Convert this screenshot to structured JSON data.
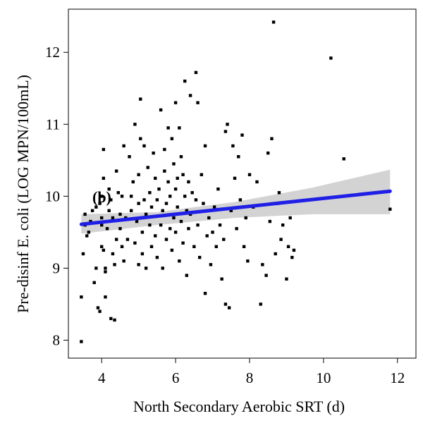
{
  "chart_data": {
    "type": "scatter",
    "panel_label": "(b)",
    "xlabel": "North Secondary Aerobic SRT (d)",
    "ylabel": "Pre-disinf E. coli (LOG MPN/100mL)",
    "xlim": [
      3.1,
      12.5
    ],
    "ylim": [
      7.75,
      12.6
    ],
    "xticks": [
      4,
      6,
      8,
      10,
      12
    ],
    "yticks": [
      8,
      9,
      10,
      11,
      12
    ],
    "grid": false,
    "legend": "none",
    "colors": {
      "points": "#000000",
      "fit_line": "#1f1fe6",
      "confidence_band": "#d3d3d3"
    },
    "series": [
      {
        "type": "scatter",
        "points": [
          [
            3.45,
            7.98
          ],
          [
            3.45,
            8.6
          ],
          [
            3.5,
            9.2
          ],
          [
            3.55,
            9.75
          ],
          [
            3.6,
            9.45
          ],
          [
            3.55,
            9.6
          ],
          [
            3.65,
            9.5
          ],
          [
            3.7,
            9.65
          ],
          [
            3.75,
            9.8
          ],
          [
            3.8,
            8.8
          ],
          [
            3.85,
            9.85
          ],
          [
            3.85,
            9.0
          ],
          [
            3.9,
            8.45
          ],
          [
            3.95,
            8.4
          ],
          [
            3.95,
            9.9
          ],
          [
            4.0,
            9.6
          ],
          [
            4.0,
            9.3
          ],
          [
            4.0,
            9.7
          ],
          [
            4.0,
            10.0
          ],
          [
            4.05,
            10.25
          ],
          [
            4.05,
            10.65
          ],
          [
            4.05,
            9.25
          ],
          [
            4.1,
            9.0
          ],
          [
            4.1,
            8.95
          ],
          [
            4.1,
            8.6
          ],
          [
            4.15,
            9.55
          ],
          [
            4.2,
            9.8
          ],
          [
            4.2,
            10.1
          ],
          [
            4.25,
            9.95
          ],
          [
            4.25,
            8.3
          ],
          [
            4.3,
            9.2
          ],
          [
            4.3,
            9.7
          ],
          [
            4.35,
            8.28
          ],
          [
            4.35,
            9.05
          ],
          [
            4.4,
            9.4
          ],
          [
            4.4,
            10.35
          ],
          [
            4.45,
            10.05
          ],
          [
            4.5,
            9.75
          ],
          [
            4.5,
            9.55
          ],
          [
            4.55,
            10.0
          ],
          [
            4.55,
            9.3
          ],
          [
            4.6,
            10.7
          ],
          [
            4.6,
            9.1
          ],
          [
            4.65,
            9.7
          ],
          [
            4.7,
            9.4
          ],
          [
            4.75,
            10.55
          ],
          [
            4.8,
            10.0
          ],
          [
            4.8,
            9.8
          ],
          [
            4.85,
            10.2
          ],
          [
            4.9,
            11.0
          ],
          [
            4.9,
            9.35
          ],
          [
            4.95,
            9.65
          ],
          [
            5.0,
            10.3
          ],
          [
            5.0,
            9.05
          ],
          [
            5.0,
            9.9
          ],
          [
            5.05,
            11.35
          ],
          [
            5.05,
            10.8
          ],
          [
            5.1,
            9.5
          ],
          [
            5.1,
            9.2
          ],
          [
            5.15,
            9.95
          ],
          [
            5.15,
            10.7
          ],
          [
            5.2,
            9.0
          ],
          [
            5.2,
            9.75
          ],
          [
            5.25,
            10.4
          ],
          [
            5.3,
            9.6
          ],
          [
            5.3,
            10.05
          ],
          [
            5.35,
            9.3
          ],
          [
            5.35,
            9.85
          ],
          [
            5.4,
            10.6
          ],
          [
            5.45,
            10.25
          ],
          [
            5.45,
            9.45
          ],
          [
            5.5,
            9.95
          ],
          [
            5.5,
            9.15
          ],
          [
            5.55,
            10.1
          ],
          [
            5.6,
            11.2
          ],
          [
            5.6,
            9.6
          ],
          [
            5.65,
            9.0
          ],
          [
            5.65,
            9.8
          ],
          [
            5.7,
            10.65
          ],
          [
            5.7,
            10.35
          ],
          [
            5.75,
            9.4
          ],
          [
            5.75,
            9.9
          ],
          [
            5.8,
            10.95
          ],
          [
            5.8,
            10.2
          ],
          [
            5.85,
            9.55
          ],
          [
            5.85,
            10.0
          ],
          [
            5.9,
            9.25
          ],
          [
            5.9,
            10.8
          ],
          [
            5.95,
            10.45
          ],
          [
            5.95,
            9.7
          ],
          [
            6.0,
            11.3
          ],
          [
            6.0,
            10.1
          ],
          [
            6.0,
            9.5
          ],
          [
            6.05,
            10.25
          ],
          [
            6.05,
            9.85
          ],
          [
            6.1,
            10.95
          ],
          [
            6.1,
            9.1
          ],
          [
            6.15,
            10.55
          ],
          [
            6.15,
            9.65
          ],
          [
            6.2,
            10.3
          ],
          [
            6.2,
            9.35
          ],
          [
            6.25,
            11.6
          ],
          [
            6.25,
            10.0
          ],
          [
            6.3,
            9.8
          ],
          [
            6.3,
            8.9
          ],
          [
            6.35,
            10.2
          ],
          [
            6.35,
            9.55
          ],
          [
            6.4,
            11.4
          ],
          [
            6.4,
            9.75
          ],
          [
            6.45,
            10.05
          ],
          [
            6.5,
            9.3
          ],
          [
            6.55,
            11.72
          ],
          [
            6.55,
            9.95
          ],
          [
            6.6,
            11.3
          ],
          [
            6.6,
            9.6
          ],
          [
            6.65,
            9.15
          ],
          [
            6.7,
            10.3
          ],
          [
            6.75,
            9.9
          ],
          [
            6.8,
            10.7
          ],
          [
            6.8,
            8.65
          ],
          [
            6.85,
            9.45
          ],
          [
            6.9,
            9.7
          ],
          [
            6.95,
            9.05
          ],
          [
            7.0,
            9.5
          ],
          [
            7.05,
            9.85
          ],
          [
            7.1,
            9.3
          ],
          [
            7.15,
            10.1
          ],
          [
            7.2,
            9.6
          ],
          [
            7.25,
            8.85
          ],
          [
            7.3,
            9.4
          ],
          [
            7.35,
            10.9
          ],
          [
            7.35,
            8.5
          ],
          [
            7.4,
            11.0
          ],
          [
            7.45,
            8.45
          ],
          [
            7.5,
            9.8
          ],
          [
            7.55,
            10.7
          ],
          [
            7.6,
            10.25
          ],
          [
            7.65,
            9.55
          ],
          [
            7.7,
            10.55
          ],
          [
            7.75,
            9.95
          ],
          [
            7.8,
            10.85
          ],
          [
            7.85,
            9.3
          ],
          [
            7.9,
            9.7
          ],
          [
            7.95,
            9.1
          ],
          [
            8.0,
            10.3
          ],
          [
            8.1,
            9.85
          ],
          [
            8.2,
            10.2
          ],
          [
            8.3,
            8.5
          ],
          [
            8.35,
            9.05
          ],
          [
            8.45,
            8.9
          ],
          [
            8.5,
            10.6
          ],
          [
            8.55,
            9.65
          ],
          [
            8.6,
            10.8
          ],
          [
            8.65,
            12.42
          ],
          [
            8.7,
            9.2
          ],
          [
            8.75,
            9.9
          ],
          [
            8.8,
            10.05
          ],
          [
            8.85,
            9.4
          ],
          [
            8.9,
            9.6
          ],
          [
            9.0,
            8.85
          ],
          [
            9.05,
            9.3
          ],
          [
            9.1,
            9.7
          ],
          [
            9.15,
            9.15
          ],
          [
            9.2,
            9.25
          ],
          [
            10.2,
            11.92
          ],
          [
            10.55,
            10.52
          ],
          [
            11.8,
            9.82
          ]
        ]
      },
      {
        "type": "line",
        "x": [
          3.45,
          11.8
        ],
        "y": [
          9.61,
          10.07
        ]
      },
      {
        "type": "area",
        "x": [
          3.45,
          5.5,
          7.6,
          9.7,
          11.8
        ],
        "lower": [
          9.48,
          9.6,
          9.7,
          9.75,
          9.75
        ],
        "upper": [
          9.75,
          9.78,
          9.92,
          10.12,
          10.37
        ]
      }
    ]
  }
}
